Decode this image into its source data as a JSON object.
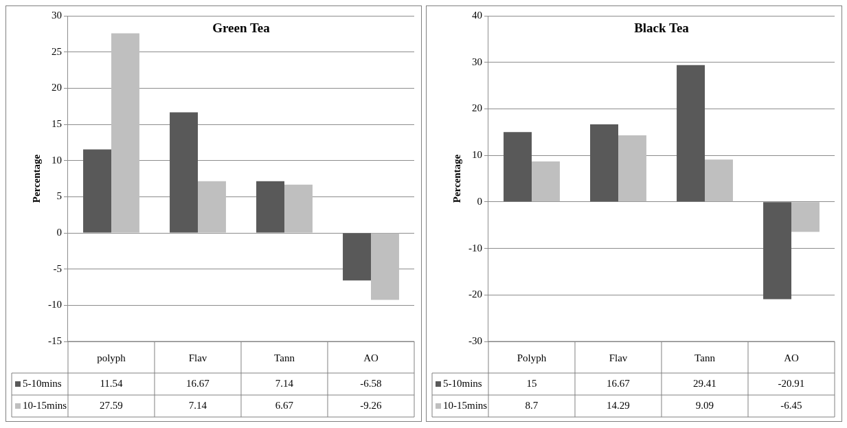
{
  "chart_data": [
    {
      "type": "bar",
      "title": "Green Tea",
      "ylabel": "Percentage",
      "categories": [
        "polyph",
        "Flav",
        "Tann",
        "AO"
      ],
      "series": [
        {
          "name": "5-10mins",
          "color": "#595959",
          "values": [
            11.54,
            16.67,
            7.14,
            -6.58
          ]
        },
        {
          "name": "10-15mins",
          "color": "#bfbfbf",
          "values": [
            27.59,
            7.14,
            6.67,
            -9.26
          ]
        }
      ],
      "ylim": [
        -15,
        30
      ],
      "yticks": [
        -15,
        -10,
        -5,
        0,
        5,
        10,
        15,
        20,
        25,
        30
      ],
      "grid": "y",
      "data_labels": true,
      "legend": "bottom left"
    },
    {
      "type": "bar",
      "title": "Black Tea",
      "ylabel": "Percentage",
      "categories": [
        "Polyph",
        "Flav",
        "Tann",
        "AO"
      ],
      "series": [
        {
          "name": "5-10mins",
          "color": "#595959",
          "values": [
            15,
            16.67,
            29.41,
            -20.91
          ]
        },
        {
          "name": "10-15mins",
          "color": "#bfbfbf",
          "values": [
            8.7,
            14.29,
            9.09,
            -6.45
          ]
        }
      ],
      "ylim": [
        -30,
        40
      ],
      "yticks": [
        -30,
        -20,
        -10,
        0,
        10,
        20,
        30,
        40
      ],
      "grid": "y",
      "data_labels": true,
      "legend": "bottom left"
    }
  ]
}
